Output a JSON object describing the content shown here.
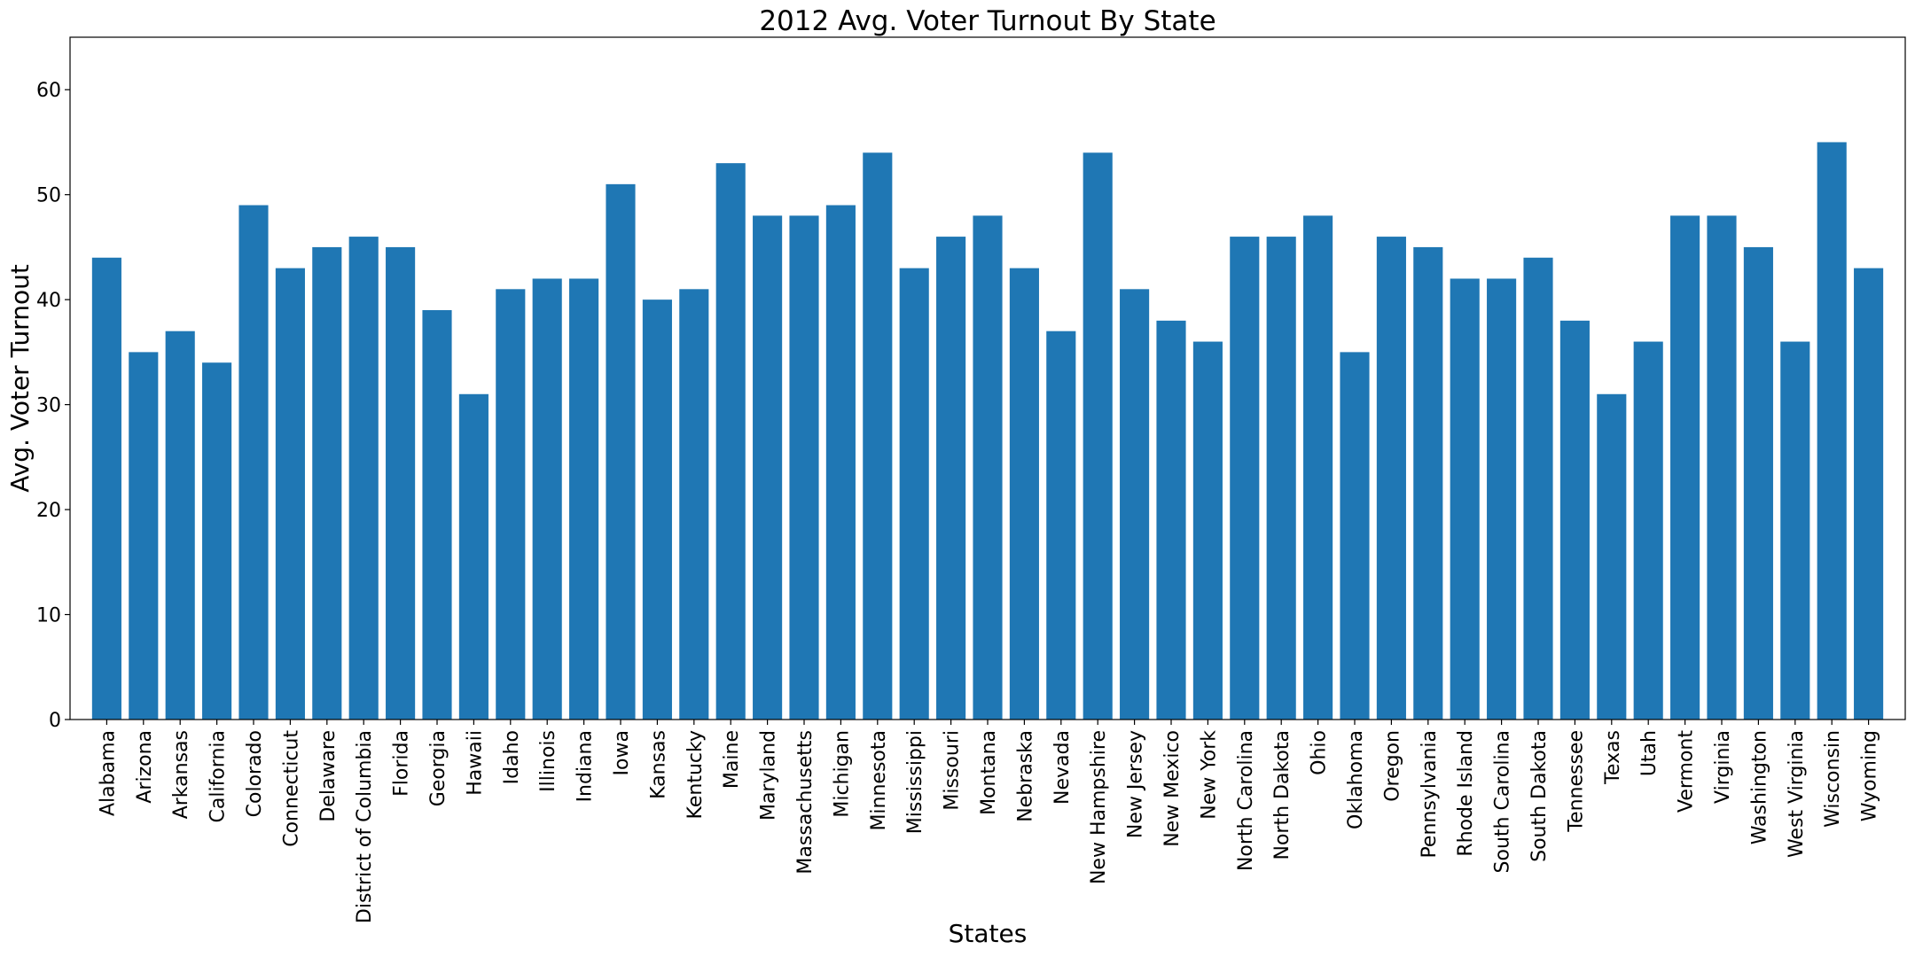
{
  "chart_data": {
    "type": "bar",
    "title": "2012 Avg. Voter Turnout By State",
    "xlabel": "States",
    "ylabel": "Avg. Voter Turnout",
    "ylim": [
      0,
      65
    ],
    "yticks": [
      0,
      10,
      20,
      30,
      40,
      50,
      60
    ],
    "grid": false,
    "bar_color": "#1f77b4",
    "categories": [
      "Alabama",
      "Arizona",
      "Arkansas",
      "California",
      "Colorado",
      "Connecticut",
      "Delaware",
      "District of Columbia",
      "Florida",
      "Georgia",
      "Hawaii",
      "Idaho",
      "Illinois",
      "Indiana",
      "Iowa",
      "Kansas",
      "Kentucky",
      "Maine",
      "Maryland",
      "Massachusetts",
      "Michigan",
      "Minnesota",
      "Mississippi",
      "Missouri",
      "Montana",
      "Nebraska",
      "Nevada",
      "New Hampshire",
      "New Jersey",
      "New Mexico",
      "New York",
      "North Carolina",
      "North Dakota",
      "Ohio",
      "Oklahoma",
      "Oregon",
      "Pennsylvania",
      "Rhode Island",
      "South Carolina",
      "South Dakota",
      "Tennessee",
      "Texas",
      "Utah",
      "Vermont",
      "Virginia",
      "Washington",
      "West Virginia",
      "Wisconsin",
      "Wyoming"
    ],
    "values": [
      44,
      35,
      37,
      34,
      49,
      43,
      45,
      46,
      45,
      39,
      31,
      41,
      42,
      42,
      51,
      40,
      41,
      53,
      48,
      48,
      49,
      54,
      43,
      46,
      48,
      43,
      37,
      54,
      41,
      38,
      36,
      46,
      46,
      48,
      35,
      46,
      45,
      42,
      42,
      44,
      38,
      31,
      36,
      48,
      48,
      45,
      36,
      55,
      43
    ]
  }
}
